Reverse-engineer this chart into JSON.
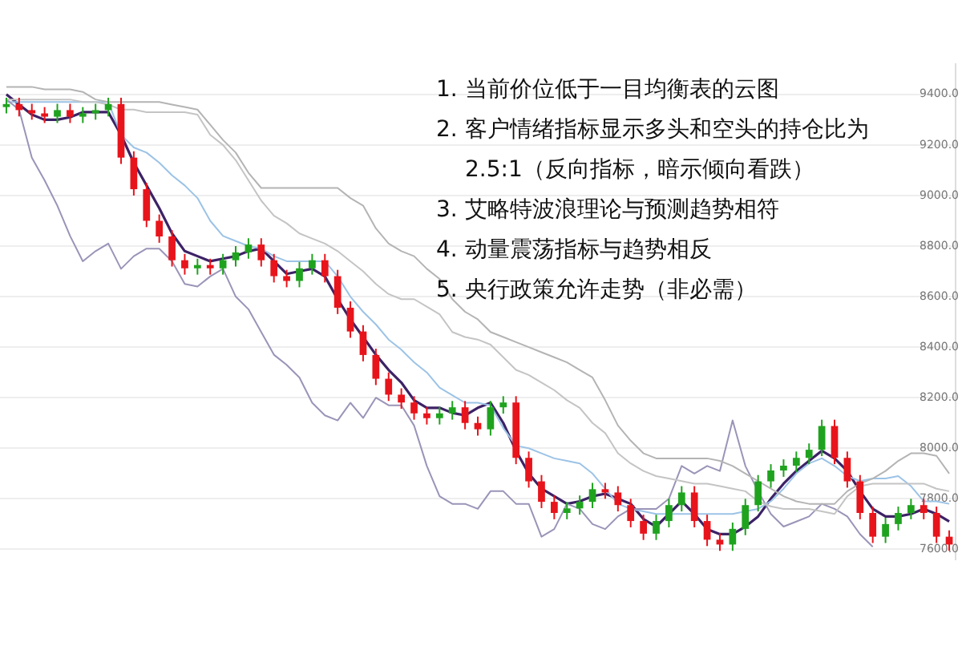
{
  "chart_data": {
    "type": "candlestick",
    "categories": [
      null,
      null,
      null,
      null,
      null,
      null,
      null,
      null,
      null,
      null,
      null,
      null,
      null,
      null,
      null,
      null,
      null,
      null,
      null,
      null,
      null,
      null,
      null,
      null,
      null,
      null,
      null,
      null,
      null,
      null,
      null,
      null,
      null,
      null,
      null,
      null,
      null,
      null,
      null,
      null,
      null,
      null,
      null,
      null,
      null,
      null,
      null,
      null,
      null,
      null,
      null,
      null,
      null,
      null,
      null,
      null,
      null,
      null,
      null,
      null,
      null,
      null,
      null,
      null,
      null,
      null,
      null,
      null,
      null,
      null,
      null,
      null,
      null,
      null,
      null
    ],
    "ohlc": [
      [
        9350,
        9387,
        9325,
        9362
      ],
      [
        9362,
        9387,
        9313,
        9338
      ],
      [
        9338,
        9363,
        9300,
        9325
      ],
      [
        9325,
        9350,
        9287,
        9312
      ],
      [
        9312,
        9363,
        9287,
        9338
      ],
      [
        9338,
        9363,
        9287,
        9312
      ],
      [
        9312,
        9350,
        9287,
        9325
      ],
      [
        9325,
        9363,
        9300,
        9338
      ],
      [
        9338,
        9387,
        9313,
        9362
      ],
      [
        9362,
        9387,
        9125,
        9150
      ],
      [
        9150,
        9175,
        9000,
        9025
      ],
      [
        9025,
        9050,
        8875,
        8900
      ],
      [
        8900,
        8925,
        8813,
        8838
      ],
      [
        8838,
        8863,
        8719,
        8744
      ],
      [
        8744,
        8769,
        8687,
        8712
      ],
      [
        8712,
        8750,
        8687,
        8725
      ],
      [
        8725,
        8750,
        8687,
        8712
      ],
      [
        8712,
        8769,
        8687,
        8744
      ],
      [
        8744,
        8800,
        8719,
        8775
      ],
      [
        8775,
        8831,
        8750,
        8806
      ],
      [
        8806,
        8831,
        8719,
        8744
      ],
      [
        8744,
        8769,
        8656,
        8681
      ],
      [
        8681,
        8706,
        8637,
        8662
      ],
      [
        8662,
        8737,
        8637,
        8712
      ],
      [
        8712,
        8769,
        8687,
        8744
      ],
      [
        8744,
        8769,
        8656,
        8681
      ],
      [
        8681,
        8706,
        8531,
        8556
      ],
      [
        8556,
        8581,
        8437,
        8462
      ],
      [
        8462,
        8487,
        8344,
        8369
      ],
      [
        8369,
        8394,
        8250,
        8275
      ],
      [
        8275,
        8300,
        8187,
        8212
      ],
      [
        8212,
        8237,
        8156,
        8181
      ],
      [
        8181,
        8206,
        8113,
        8138
      ],
      [
        8138,
        8163,
        8094,
        8119
      ],
      [
        8119,
        8163,
        8094,
        8138
      ],
      [
        8138,
        8187,
        8113,
        8162
      ],
      [
        8162,
        8187,
        8075,
        8100
      ],
      [
        8100,
        8125,
        8050,
        8075
      ],
      [
        8075,
        8187,
        8050,
        8162
      ],
      [
        8162,
        8206,
        8137,
        8181
      ],
      [
        8181,
        8206,
        7937,
        7962
      ],
      [
        7962,
        7987,
        7844,
        7869
      ],
      [
        7869,
        7894,
        7763,
        7788
      ],
      [
        7788,
        7813,
        7719,
        7744
      ],
      [
        7744,
        7787,
        7719,
        7762
      ],
      [
        7762,
        7813,
        7737,
        7788
      ],
      [
        7788,
        7863,
        7763,
        7838
      ],
      [
        7838,
        7863,
        7800,
        7825
      ],
      [
        7825,
        7850,
        7750,
        7775
      ],
      [
        7775,
        7800,
        7687,
        7712
      ],
      [
        7712,
        7737,
        7637,
        7662
      ],
      [
        7662,
        7737,
        7637,
        7712
      ],
      [
        7712,
        7800,
        7687,
        7775
      ],
      [
        7775,
        7850,
        7750,
        7825
      ],
      [
        7825,
        7850,
        7687,
        7712
      ],
      [
        7712,
        7737,
        7613,
        7638
      ],
      [
        7638,
        7663,
        7594,
        7619
      ],
      [
        7619,
        7706,
        7594,
        7681
      ],
      [
        7681,
        7800,
        7656,
        7775
      ],
      [
        7775,
        7894,
        7750,
        7869
      ],
      [
        7869,
        7937,
        7844,
        7912
      ],
      [
        7912,
        7956,
        7887,
        7931
      ],
      [
        7931,
        7987,
        7906,
        7962
      ],
      [
        7962,
        8019,
        7937,
        7994
      ],
      [
        7994,
        8113,
        7969,
        8088
      ],
      [
        8088,
        8113,
        7937,
        7962
      ],
      [
        7962,
        7987,
        7844,
        7869
      ],
      [
        7869,
        7894,
        7719,
        7744
      ],
      [
        7744,
        7769,
        7625,
        7650
      ],
      [
        7650,
        7725,
        7625,
        7700
      ],
      [
        7700,
        7769,
        7675,
        7744
      ],
      [
        7744,
        7800,
        7719,
        7775
      ],
      [
        7775,
        7800,
        7719,
        7744
      ],
      [
        7744,
        7769,
        7625,
        7650
      ],
      [
        7650,
        7675,
        7594,
        7619
      ]
    ],
    "colors": [
      "#1fa31f",
      "#e8141b",
      "#e8141b",
      "#e8141b",
      "#1fa31f",
      "#e8141b",
      "#1fa31f",
      "#1fa31f",
      "#1fa31f",
      "#e8141b",
      "#e8141b",
      "#e8141b",
      "#e8141b",
      "#e8141b",
      "#e8141b",
      "#1fa31f",
      "#e8141b",
      "#1fa31f",
      "#1fa31f",
      "#1fa31f",
      "#e8141b",
      "#e8141b",
      "#e8141b",
      "#1fa31f",
      "#1fa31f",
      "#e8141b",
      "#e8141b",
      "#e8141b",
      "#e8141b",
      "#e8141b",
      "#e8141b",
      "#e8141b",
      "#e8141b",
      "#e8141b",
      "#1fa31f",
      "#1fa31f",
      "#e8141b",
      "#e8141b",
      "#1fa31f",
      "#1fa31f",
      "#e8141b",
      "#e8141b",
      "#e8141b",
      "#e8141b",
      "#1fa31f",
      "#1fa31f",
      "#1fa31f",
      "#e8141b",
      "#e8141b",
      "#e8141b",
      "#e8141b",
      "#1fa31f",
      "#1fa31f",
      "#1fa31f",
      "#e8141b",
      "#e8141b",
      "#e8141b",
      "#1fa31f",
      "#1fa31f",
      "#1fa31f",
      "#1fa31f",
      "#1fa31f",
      "#1fa31f",
      "#1fa31f",
      "#1fa31f",
      "#e8141b",
      "#e8141b",
      "#e8141b",
      "#e8141b",
      "#1fa31f",
      "#1fa31f",
      "#1fa31f",
      "#e8141b",
      "#e8141b",
      "#e8141b"
    ],
    "series": [
      {
        "type": "line",
        "color": "#b4b4b4",
        "values": [
          9430,
          9430,
          9430,
          9420,
          9420,
          9420,
          9410,
          9380,
          9370,
          9370,
          9370,
          9370,
          9370,
          9360,
          9350,
          9340,
          9280,
          9220,
          9170,
          9090,
          9030,
          9030,
          9030,
          9030,
          9030,
          9030,
          9030,
          8990,
          8960,
          8870,
          8810,
          8780,
          8760,
          8710,
          8670,
          8590,
          8540,
          8510,
          8460,
          8440,
          8420,
          8400,
          8380,
          8360,
          8340,
          8310,
          8280,
          8190,
          8090,
          8030,
          7980,
          7960,
          7960,
          7960,
          7960,
          7960,
          7950,
          7930,
          7900,
          7870,
          7840,
          7810,
          7790,
          7780,
          7780,
          7780,
          7830,
          7860,
          7880,
          7910,
          7950,
          7980,
          7980,
          7970,
          7900
        ]
      },
      {
        "type": "line",
        "color": "#c4c4c4",
        "values": [
          9380,
          9380,
          9380,
          9380,
          9380,
          9380,
          9370,
          9370,
          9360,
          9340,
          9340,
          9330,
          9330,
          9330,
          9330,
          9320,
          9240,
          9200,
          9140,
          9060,
          8980,
          8920,
          8890,
          8850,
          8830,
          8810,
          8780,
          8740,
          8700,
          8650,
          8610,
          8590,
          8590,
          8560,
          8530,
          8460,
          8440,
          8430,
          8410,
          8360,
          8310,
          8290,
          8260,
          8230,
          8190,
          8160,
          8100,
          8060,
          7980,
          7940,
          7910,
          7890,
          7880,
          7870,
          7860,
          7860,
          7850,
          7840,
          7830,
          7790,
          7770,
          7760,
          7760,
          7760,
          7750,
          7740,
          7810,
          7850,
          7860,
          7860,
          7860,
          7860,
          7860,
          7840,
          7830
        ]
      },
      {
        "type": "line",
        "color": "#9a94b8",
        "values": [
          9380,
          9340,
          9150,
          9060,
          8960,
          8840,
          8740,
          8780,
          8810,
          8710,
          8760,
          8790,
          8790,
          8740,
          8650,
          8640,
          8680,
          8710,
          8600,
          8550,
          8460,
          8370,
          8330,
          8280,
          8180,
          8130,
          8110,
          8180,
          8120,
          8200,
          8170,
          8170,
          8090,
          7930,
          7810,
          7780,
          7780,
          7760,
          7830,
          7830,
          7780,
          7780,
          7650,
          7680,
          7780,
          7760,
          7700,
          7680,
          7730,
          7760,
          7760,
          7760,
          7800,
          7930,
          7900,
          7930,
          7910,
          8110,
          7930,
          7830,
          7740,
          7690,
          7710,
          7730,
          7780,
          7760,
          7730,
          7660,
          7610,
          null,
          null,
          null,
          null,
          null,
          null
        ]
      },
      {
        "type": "line",
        "color": "#9cc3e6",
        "values": [
          9370,
          9370,
          9370,
          9370,
          9370,
          9370,
          9370,
          9370,
          9370,
          9240,
          9190,
          9170,
          9130,
          9080,
          9040,
          8990,
          8900,
          8840,
          8820,
          8800,
          8790,
          8760,
          8740,
          8740,
          8740,
          8740,
          8680,
          8600,
          8540,
          8490,
          8430,
          8390,
          8340,
          8300,
          8240,
          8210,
          8180,
          8180,
          8170,
          8080,
          8010,
          8000,
          7980,
          7960,
          7950,
          7940,
          7900,
          7840,
          7780,
          7760,
          7750,
          7740,
          7740,
          7740,
          7740,
          7740,
          7740,
          7740,
          7750,
          7760,
          7790,
          7840,
          7900,
          7940,
          7960,
          7930,
          7890,
          7870,
          7880,
          7880,
          7890,
          7850,
          7790,
          7790,
          7780
        ]
      },
      {
        "type": "line",
        "color": "#3d2266",
        "values": [
          9400,
          9360,
          9320,
          9300,
          9300,
          9310,
          9330,
          9330,
          9330,
          9240,
          9130,
          9040,
          8950,
          8850,
          8780,
          8760,
          8740,
          8750,
          8760,
          8780,
          8790,
          8740,
          8690,
          8700,
          8710,
          8680,
          8590,
          8510,
          8440,
          8370,
          8310,
          8260,
          8190,
          8160,
          8160,
          8140,
          8130,
          8160,
          8180,
          8100,
          7990,
          7900,
          7840,
          7810,
          7780,
          7790,
          7810,
          7820,
          7800,
          7780,
          7720,
          7690,
          7740,
          7790,
          7740,
          7680,
          7660,
          7660,
          7690,
          7730,
          7800,
          7860,
          7910,
          7950,
          7990,
          7960,
          7910,
          7830,
          7760,
          7730,
          7730,
          7740,
          7760,
          7740,
          7710
        ]
      }
    ],
    "ylim": [
      7560,
      9520
    ],
    "yticks": [
      {
        "value": 7600,
        "label": "7600.0"
      },
      {
        "value": 7800,
        "label": "7800.0"
      },
      {
        "value": 8000,
        "label": "8000.0"
      },
      {
        "value": 8200,
        "label": "8200.0"
      },
      {
        "value": 8400,
        "label": "8400.0"
      },
      {
        "value": 8600,
        "label": "8600.0"
      },
      {
        "value": 8800,
        "label": "8800.0"
      },
      {
        "value": 9000,
        "label": "9000.0"
      },
      {
        "value": 9200,
        "label": "9200.0"
      },
      {
        "value": 9400,
        "label": "9400.0"
      }
    ],
    "grid": "y",
    "tick_labels": "y",
    "marker": "none",
    "annotations": [
      "1. 当前价位低于一目均衡表的云图",
      "2. 客户情绪指标显示多头和空头的持仓比为2.5:1（反向指标，暗示倾向看跌）",
      "3. 艾略特波浪理论与预测趋势相符",
      "4. 动量震荡指标与趋势相反",
      "5. 央行政策允许走势（非必需）"
    ]
  }
}
